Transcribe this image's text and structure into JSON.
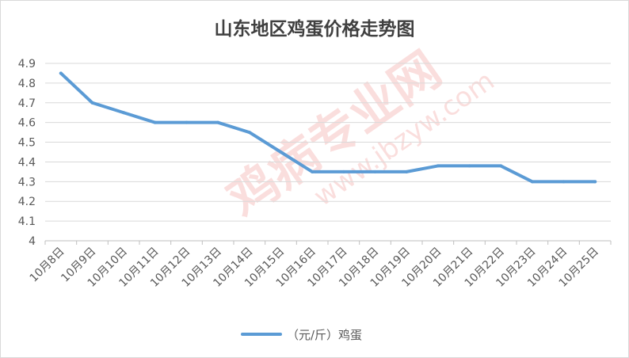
{
  "chart_data": {
    "type": "line",
    "title": "山东地区鸡蛋价格走势图",
    "xlabel": "",
    "ylabel": "",
    "categories": [
      "10月8日",
      "10月9日",
      "10月10日",
      "10月11日",
      "10月12日",
      "10月13日",
      "10月14日",
      "10月15日",
      "10月16日",
      "10月17日",
      "10月18日",
      "10月19日",
      "10月20日",
      "10月21日",
      "10月22日",
      "10月23日",
      "10月24日",
      "10月25日"
    ],
    "series": [
      {
        "name": "（元/斤）鸡蛋",
        "color": "#5B9BD5",
        "values": [
          4.85,
          4.7,
          4.65,
          4.6,
          4.6,
          4.6,
          4.55,
          4.45,
          4.35,
          4.35,
          4.35,
          4.35,
          4.38,
          4.38,
          4.38,
          4.3,
          4.3,
          4.3
        ]
      }
    ],
    "ylim": [
      4.0,
      4.9
    ],
    "yticks": [
      "4",
      "4.1",
      "4.2",
      "4.3",
      "4.4",
      "4.5",
      "4.6",
      "4.7",
      "4.8",
      "4.9"
    ],
    "grid": true,
    "legend_position": "bottom",
    "watermark": {
      "text": "鸡病专业网",
      "url": "www.jbzyw.com",
      "color": "#e53935"
    }
  }
}
